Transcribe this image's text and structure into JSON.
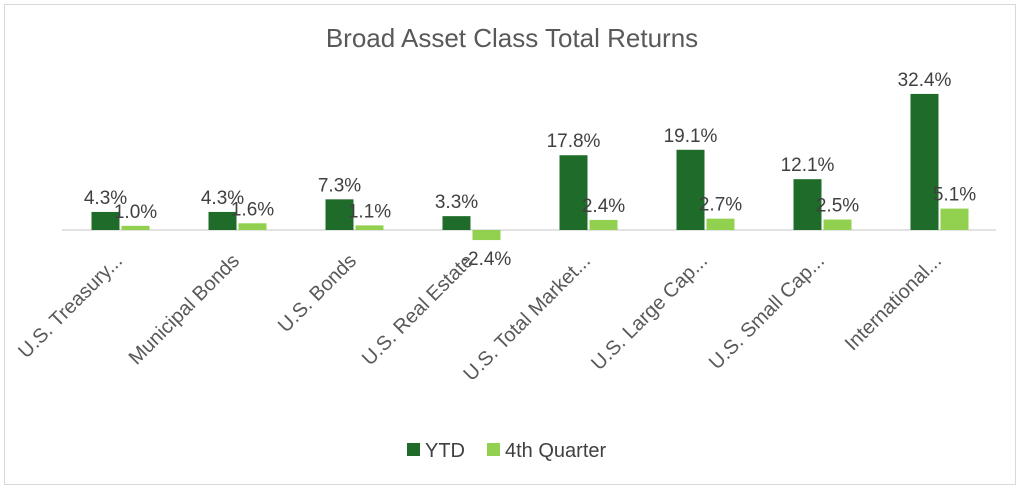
{
  "chart_data": {
    "type": "bar",
    "title": "Broad Asset Class Total Returns",
    "categories": [
      "U.S. Treasury...",
      "Municipal Bonds",
      "U.S. Bonds",
      "U.S. Real Estate",
      "U.S. Total Market...",
      "U.S. Large Cap...",
      "U.S. Small Cap...",
      "International..."
    ],
    "series": [
      {
        "name": "YTD",
        "color": "#1e6b2a",
        "values": [
          4.3,
          4.3,
          7.3,
          3.3,
          17.8,
          19.1,
          12.1,
          32.4
        ],
        "labels": [
          "4.3%",
          "4.3%",
          "7.3%",
          "3.3%",
          "17.8%",
          "19.1%",
          "12.1%",
          "32.4%"
        ]
      },
      {
        "name": "4th Quarter",
        "color": "#92d050",
        "values": [
          1.0,
          1.6,
          1.1,
          -2.4,
          2.4,
          2.7,
          2.5,
          5.1
        ],
        "labels": [
          "1.0%",
          "1.6%",
          "1.1%",
          "-2.4%",
          "2.4%",
          "2.7%",
          "2.5%",
          "5.1%"
        ]
      }
    ],
    "xlabel": "",
    "ylabel": "",
    "grid": false,
    "legend": "bottom"
  }
}
